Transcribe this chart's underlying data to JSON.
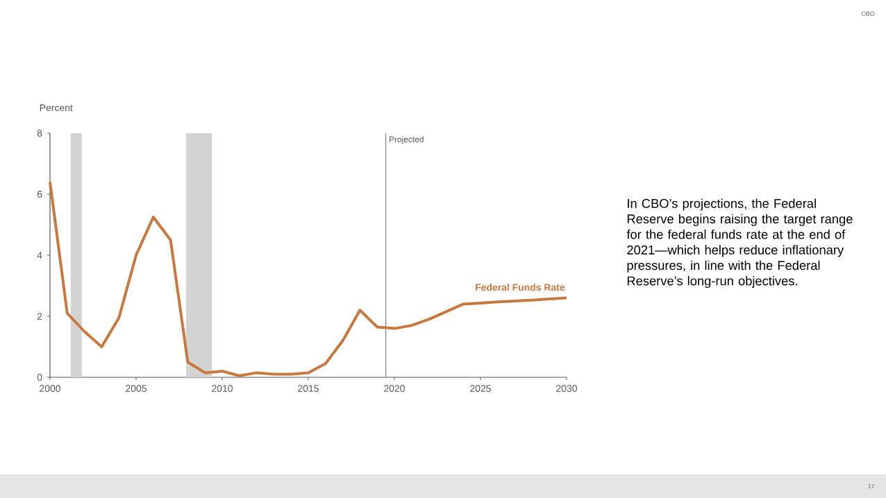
{
  "chart_data": {
    "type": "line",
    "ylabel": "Percent",
    "x": [
      2000,
      2001,
      2002,
      2003,
      2004,
      2005,
      2006,
      2007,
      2008,
      2009,
      2010,
      2011,
      2012,
      2013,
      2014,
      2015,
      2016,
      2017,
      2018,
      2019,
      2020,
      2021,
      2022,
      2023,
      2024,
      2025,
      2026,
      2027,
      2028,
      2029,
      2030
    ],
    "series": [
      {
        "name": "Federal Funds Rate",
        "color": "#c8783e",
        "values": [
          6.4,
          2.1,
          1.5,
          1.0,
          1.95,
          4.0,
          5.25,
          4.5,
          0.5,
          0.15,
          0.2,
          0.05,
          0.15,
          0.1,
          0.1,
          0.15,
          0.45,
          1.2,
          2.2,
          1.65,
          1.6,
          1.7,
          1.9,
          2.15,
          2.4,
          2.43,
          2.47,
          2.5,
          2.53,
          2.57,
          2.6
        ]
      }
    ],
    "xlim": [
      2000,
      2030
    ],
    "xticks": [
      2000,
      2005,
      2010,
      2015,
      2020,
      2025,
      2030
    ],
    "ylim": [
      0,
      8
    ],
    "yticks": [
      0,
      2,
      4,
      6,
      8
    ],
    "grid": false,
    "legend": false,
    "marker": "none",
    "line_style": "solid",
    "bands": [
      {
        "axis": "x",
        "from": 2001.2,
        "to": 2001.85,
        "color": "#d3d3d3"
      },
      {
        "axis": "x",
        "from": 2007.9,
        "to": 2009.4,
        "color": "#d3d3d3"
      }
    ],
    "ref_lines": [
      {
        "axis": "x",
        "value": 2019.5,
        "label": "Projected",
        "color": "#808080"
      }
    ],
    "annotations": [
      "In CBO’s projections, the Federal Reserve begins raising the target range for the federal funds rate at the end of 2021—which helps reduce inflationary pressures, in line with the Federal Reserve’s long-run objectives.",
      "CBO",
      "17"
    ]
  }
}
